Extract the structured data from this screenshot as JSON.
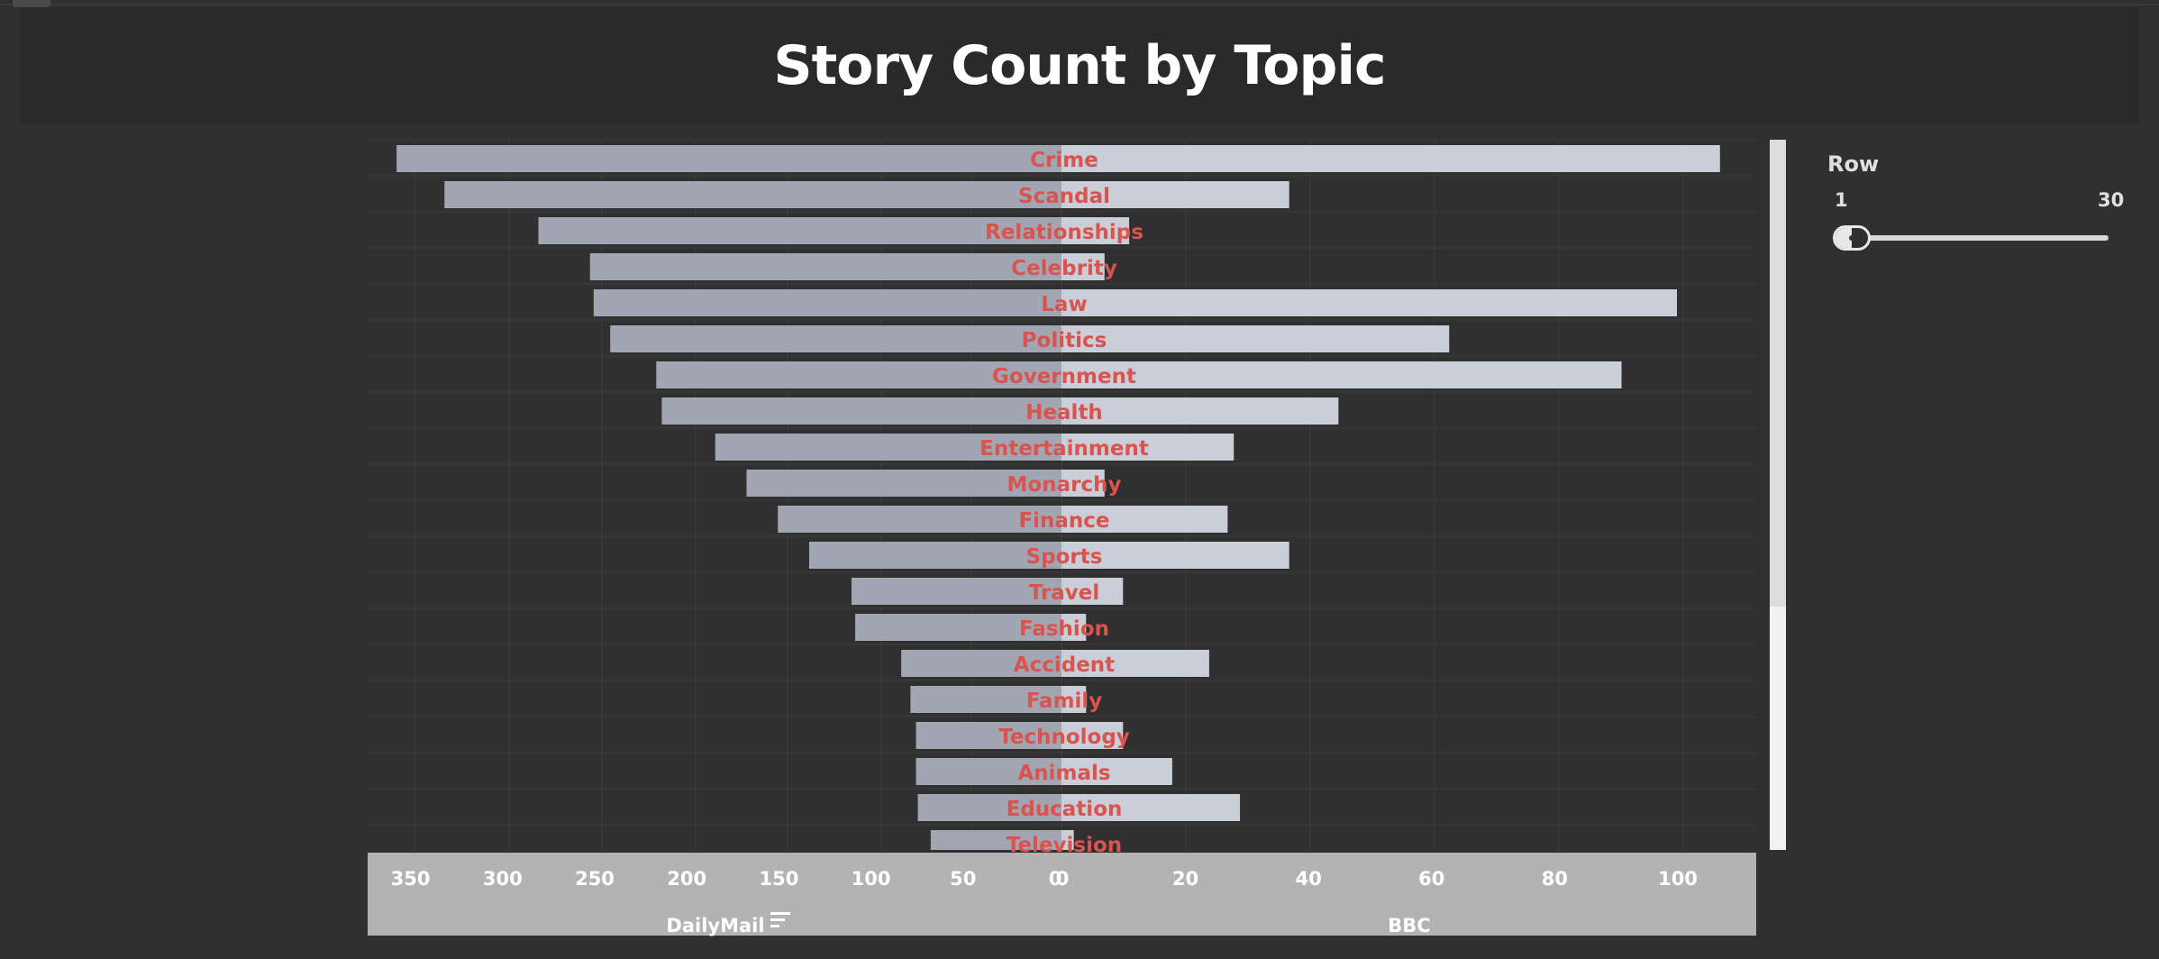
{
  "title": "Story Count by Topic",
  "filter": {
    "label": "Row",
    "min_label": "1",
    "max_label": "30",
    "range": [
      1,
      30
    ]
  },
  "colors": {
    "background": "#303030",
    "bar_left": "#a2a6b2",
    "bar_right": "#c9ced8",
    "label": "#d9534f",
    "axis_band": "#b3b3b3",
    "tick_text": "#ffffff"
  },
  "chart_data": {
    "type": "bar",
    "categories": [
      "Crime",
      "Scandal",
      "Relationships",
      "Celebrity",
      "Law",
      "Politics",
      "Government",
      "Health",
      "Entertainment",
      "Monarchy",
      "Finance",
      "Sports",
      "Travel",
      "Fashion",
      "Accident",
      "Family",
      "Technology",
      "Animals",
      "Education",
      "Television"
    ],
    "series": [
      {
        "name": "DailyMail",
        "values": [
          361,
          335,
          284,
          256,
          254,
          245,
          220,
          217,
          188,
          171,
          154,
          137,
          114,
          112,
          87,
          82,
          79,
          79,
          78,
          71
        ]
      },
      {
        "name": "BBC",
        "values": [
          107,
          37,
          11,
          7,
          100,
          63,
          91,
          45,
          28,
          7,
          27,
          37,
          10,
          4,
          24,
          4,
          10,
          18,
          29,
          2
        ]
      }
    ],
    "left_axis": {
      "label": "DailyMail",
      "ticks": [
        350,
        300,
        250,
        200,
        150,
        100,
        50,
        0
      ],
      "max": 378
    },
    "right_axis": {
      "label": "BBC",
      "ticks": [
        0,
        20,
        40,
        60,
        80,
        100
      ],
      "max": 112.5
    },
    "orientation": "horizontal diverging"
  }
}
